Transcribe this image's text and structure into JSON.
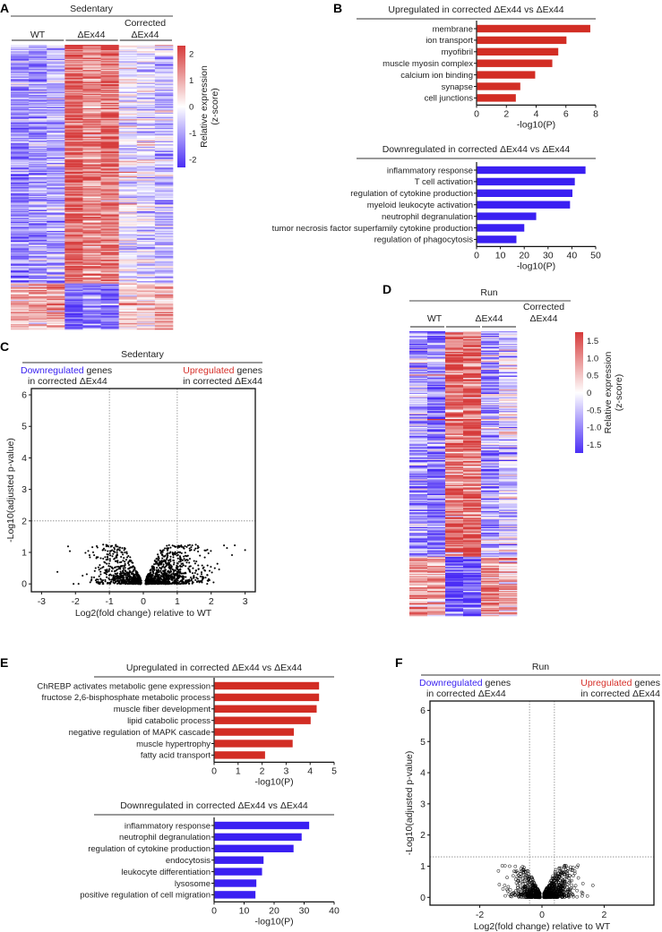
{
  "colors": {
    "red": "#d22d24",
    "blue": "#3a1ff2",
    "heat_red": "#d63a3a",
    "heat_blue": "#4a2df5"
  },
  "chart_data": [
    {
      "id": "A",
      "letter": "A",
      "type": "heatmap",
      "title": "Sedentary",
      "groups": [
        {
          "line1": "",
          "line2": "WT"
        },
        {
          "line1": "",
          "line2": "ΔEx44"
        },
        {
          "line1": "Corrected",
          "line2": "ΔEx44"
        }
      ],
      "columns_per_group": 3,
      "colorbar": {
        "label": "Relative expression",
        "sublabel": "(z-score)",
        "min": -2.3,
        "max": 2.3,
        "ticks": [
          "2",
          "1",
          "0",
          "-1",
          "-2"
        ],
        "tick_values": [
          2,
          1,
          0,
          -1,
          -2
        ]
      },
      "clusters": [
        {
          "row_fraction": 0.84,
          "column_means": [
            -1.2,
            -1.1,
            -0.9,
            1.9,
            1.4,
            1.6,
            -0.2,
            -0.3,
            -0.6
          ]
        },
        {
          "row_fraction": 0.16,
          "column_means": [
            1.0,
            0.9,
            1.2,
            -1.8,
            -1.5,
            -1.6,
            0.6,
            0.5,
            0.8
          ]
        }
      ]
    },
    {
      "id": "B-up",
      "letter": "B",
      "type": "bar",
      "title": "Upregulated in corrected ΔEx44 vs ΔEx44",
      "categories": [
        "membrane",
        "ion transport",
        "myofibril",
        "muscle myosin complex",
        "calcium ion binding",
        "synapse",
        "cell junctions"
      ],
      "values": [
        7.6,
        6.0,
        5.45,
        5.05,
        3.9,
        2.9,
        2.6
      ],
      "xlabel": "-log10(P)",
      "xlim": [
        0,
        8
      ],
      "xticks": [
        0,
        2,
        4,
        6,
        8
      ],
      "color": "#d22d24"
    },
    {
      "id": "B-down",
      "letter": "",
      "type": "bar",
      "title": "Downregulated in corrected ΔEx44 vs ΔEx44",
      "categories": [
        "inflammatory response",
        "T cell activation",
        "regulation of cytokine production",
        "myeloid leukocyte activation",
        "neutrophil degranulation",
        "tumor necrosis factor superfamily cytokine production",
        "regulation of phagocytosis"
      ],
      "values": [
        45.5,
        41,
        40,
        39,
        24.8,
        19.8,
        16.5
      ],
      "xlabel": "-log10(P)",
      "xlim": [
        0,
        50
      ],
      "xticks": [
        0,
        10,
        20,
        30,
        40,
        50
      ],
      "color": "#3a1ff2"
    },
    {
      "id": "C",
      "letter": "C",
      "type": "scatter",
      "title": "Sedentary",
      "annotation_left": {
        "colored": "Downregulated",
        "rest": " genes",
        "line2": "in corrected ΔEx44"
      },
      "annotation_right": {
        "colored": "Upregulated",
        "rest": " genes",
        "line2": "in corrected ΔEx44"
      },
      "xlabel": "Log2(fold change) relative to WT",
      "ylabel": "-Log10(adjusted p-value)",
      "xlim": [
        -3.3,
        3.3
      ],
      "ylim": [
        -0.25,
        6.2
      ],
      "xticks": [
        -3,
        -2,
        -1,
        0,
        1,
        2,
        3
      ],
      "yticks": [
        0,
        1,
        2,
        3,
        4,
        5,
        6
      ],
      "vlines": [
        -1,
        1
      ],
      "hline": 2,
      "max_observed_y": 1.25,
      "marker": "dot"
    },
    {
      "id": "D",
      "letter": "D",
      "type": "heatmap",
      "title": "Run",
      "groups": [
        {
          "line1": "",
          "line2": "WT"
        },
        {
          "line1": "",
          "line2": "ΔEx44"
        },
        {
          "line1": "Corrected",
          "line2": "ΔEx44"
        }
      ],
      "columns_per_group": 2,
      "colorbar": {
        "label": "Relative expression",
        "sublabel": "(z-score)",
        "min": -1.75,
        "max": 1.75,
        "ticks": [
          "1.5",
          "1.0",
          "0.5",
          "0",
          "-0.5",
          "-1.0",
          "-1.5"
        ],
        "tick_values": [
          1.5,
          1.0,
          0.5,
          0,
          -0.5,
          -1.0,
          -1.5
        ]
      },
      "clusters": [
        {
          "row_fraction": 0.79,
          "column_means": [
            -0.8,
            -1.1,
            1.3,
            1.4,
            -0.8,
            -0.3
          ]
        },
        {
          "row_fraction": 0.21,
          "column_means": [
            0.9,
            0.7,
            -1.5,
            -1.5,
            1.0,
            0.8
          ]
        }
      ]
    },
    {
      "id": "E-up",
      "letter": "E",
      "type": "bar",
      "title": "Upregulated in corrected ΔEx44 vs ΔEx44",
      "categories": [
        "ChREBP activates metabolic gene expression",
        "fructose 2,6-bisphosphate metabolic process",
        "muscle fiber development",
        "lipid catabolic process",
        "negative regulation of MAPK cascade",
        "muscle hypertrophy",
        "fatty acid transport"
      ],
      "values": [
        4.35,
        4.35,
        4.25,
        4.0,
        3.3,
        3.25,
        2.1
      ],
      "xlabel": "-log10(P)",
      "xlim": [
        0,
        5
      ],
      "xticks": [
        0,
        1,
        2,
        3,
        4,
        5
      ],
      "color": "#d22d24"
    },
    {
      "id": "E-down",
      "letter": "",
      "type": "bar",
      "title": "Downregulated in corrected ΔEx44 vs ΔEx44",
      "categories": [
        "inflammatory response",
        "neutrophil degranulation",
        "regulation of cytokine production",
        "endocytosis",
        "leukocyte differentiation",
        "lysosome",
        "positive regulation of cell migration"
      ],
      "values": [
        31.5,
        29,
        26.3,
        16.3,
        15.8,
        13.9,
        13.6
      ],
      "xlabel": "-log10(P)",
      "xlim": [
        0,
        40
      ],
      "xticks": [
        0,
        10,
        20,
        30,
        40
      ],
      "color": "#3a1ff2"
    },
    {
      "id": "F",
      "letter": "F",
      "type": "scatter",
      "title": "Run",
      "annotation_left": {
        "colored": "Downregulated",
        "rest": " genes",
        "line2": "in corrected ΔEx44"
      },
      "annotation_right": {
        "colored": "Upregulated",
        "rest": " genes",
        "line2": "in corrected ΔEx44"
      },
      "xlabel": "Log2(fold change) relative to WT",
      "ylabel": "-Log10(adjusted p-value)",
      "xlim": [
        -3.6,
        3.6
      ],
      "ylim": [
        -0.25,
        6.3
      ],
      "xticks": [
        -2,
        0,
        2
      ],
      "yticks": [
        0,
        1,
        2,
        3,
        4,
        5,
        6
      ],
      "vlines": [
        -0.4,
        0.4
      ],
      "hline": 1.3,
      "max_observed_y": 1.05,
      "marker": "open-circle"
    }
  ]
}
